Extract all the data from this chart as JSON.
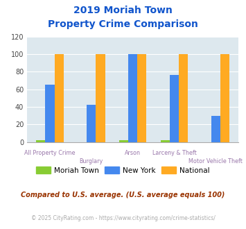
{
  "title_line1": "2019 Moriah Town",
  "title_line2": "Property Crime Comparison",
  "categories": [
    "All Property Crime",
    "Burglary",
    "Arson",
    "Larceny & Theft",
    "Motor Vehicle Theft"
  ],
  "moriah_town": [
    2,
    0,
    2,
    2,
    0
  ],
  "new_york": [
    65,
    42,
    100,
    76,
    30
  ],
  "national": [
    100,
    100,
    100,
    100,
    100
  ],
  "color_moriah": "#88cc33",
  "color_ny": "#4488ee",
  "color_national": "#ffaa22",
  "ylim": [
    0,
    120
  ],
  "yticks": [
    0,
    20,
    40,
    60,
    80,
    100,
    120
  ],
  "bg_color": "#dde8ee",
  "title_color": "#1155cc",
  "xlabel_color": "#9977aa",
  "legend_label_moriah": "Moriah Town",
  "legend_label_ny": "New York",
  "legend_label_national": "National",
  "footnote1": "Compared to U.S. average. (U.S. average equals 100)",
  "footnote2": "© 2025 CityRating.com - https://www.cityrating.com/crime-statistics/",
  "footnote1_color": "#993300",
  "footnote2_color": "#aaaaaa",
  "bar_width": 0.22
}
